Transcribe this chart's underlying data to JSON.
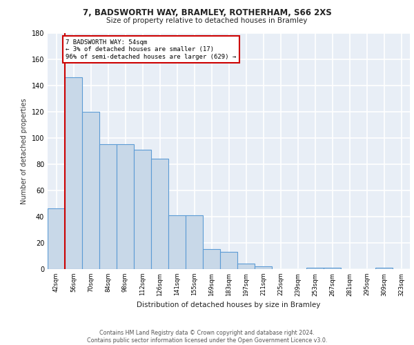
{
  "title1": "7, BADSWORTH WAY, BRAMLEY, ROTHERHAM, S66 2XS",
  "title2": "Size of property relative to detached houses in Bramley",
  "xlabel": "Distribution of detached houses by size in Bramley",
  "ylabel": "Number of detached properties",
  "categories": [
    "42sqm",
    "56sqm",
    "70sqm",
    "84sqm",
    "98sqm",
    "112sqm",
    "126sqm",
    "141sqm",
    "155sqm",
    "169sqm",
    "183sqm",
    "197sqm",
    "211sqm",
    "225sqm",
    "239sqm",
    "253sqm",
    "267sqm",
    "281sqm",
    "295sqm",
    "309sqm",
    "323sqm"
  ],
  "values": [
    46,
    146,
    120,
    95,
    95,
    91,
    84,
    41,
    41,
    15,
    13,
    4,
    2,
    0,
    0,
    1,
    1,
    0,
    0,
    1,
    0
  ],
  "bar_color": "#c8d8e8",
  "bar_edge_color": "#5b9bd5",
  "background_color": "#e8eef6",
  "grid_color": "#ffffff",
  "annotation_text": "7 BADSWORTH WAY: 54sqm\n← 3% of detached houses are smaller (17)\n96% of semi-detached houses are larger (629) →",
  "annotation_box_color": "#ffffff",
  "annotation_box_edge": "#cc0000",
  "ylim": [
    0,
    180
  ],
  "yticks": [
    0,
    20,
    40,
    60,
    80,
    100,
    120,
    140,
    160,
    180
  ],
  "footnote": "Contains HM Land Registry data © Crown copyright and database right 2024.\nContains public sector information licensed under the Open Government Licence v3.0.",
  "red_line_color": "#cc0000"
}
